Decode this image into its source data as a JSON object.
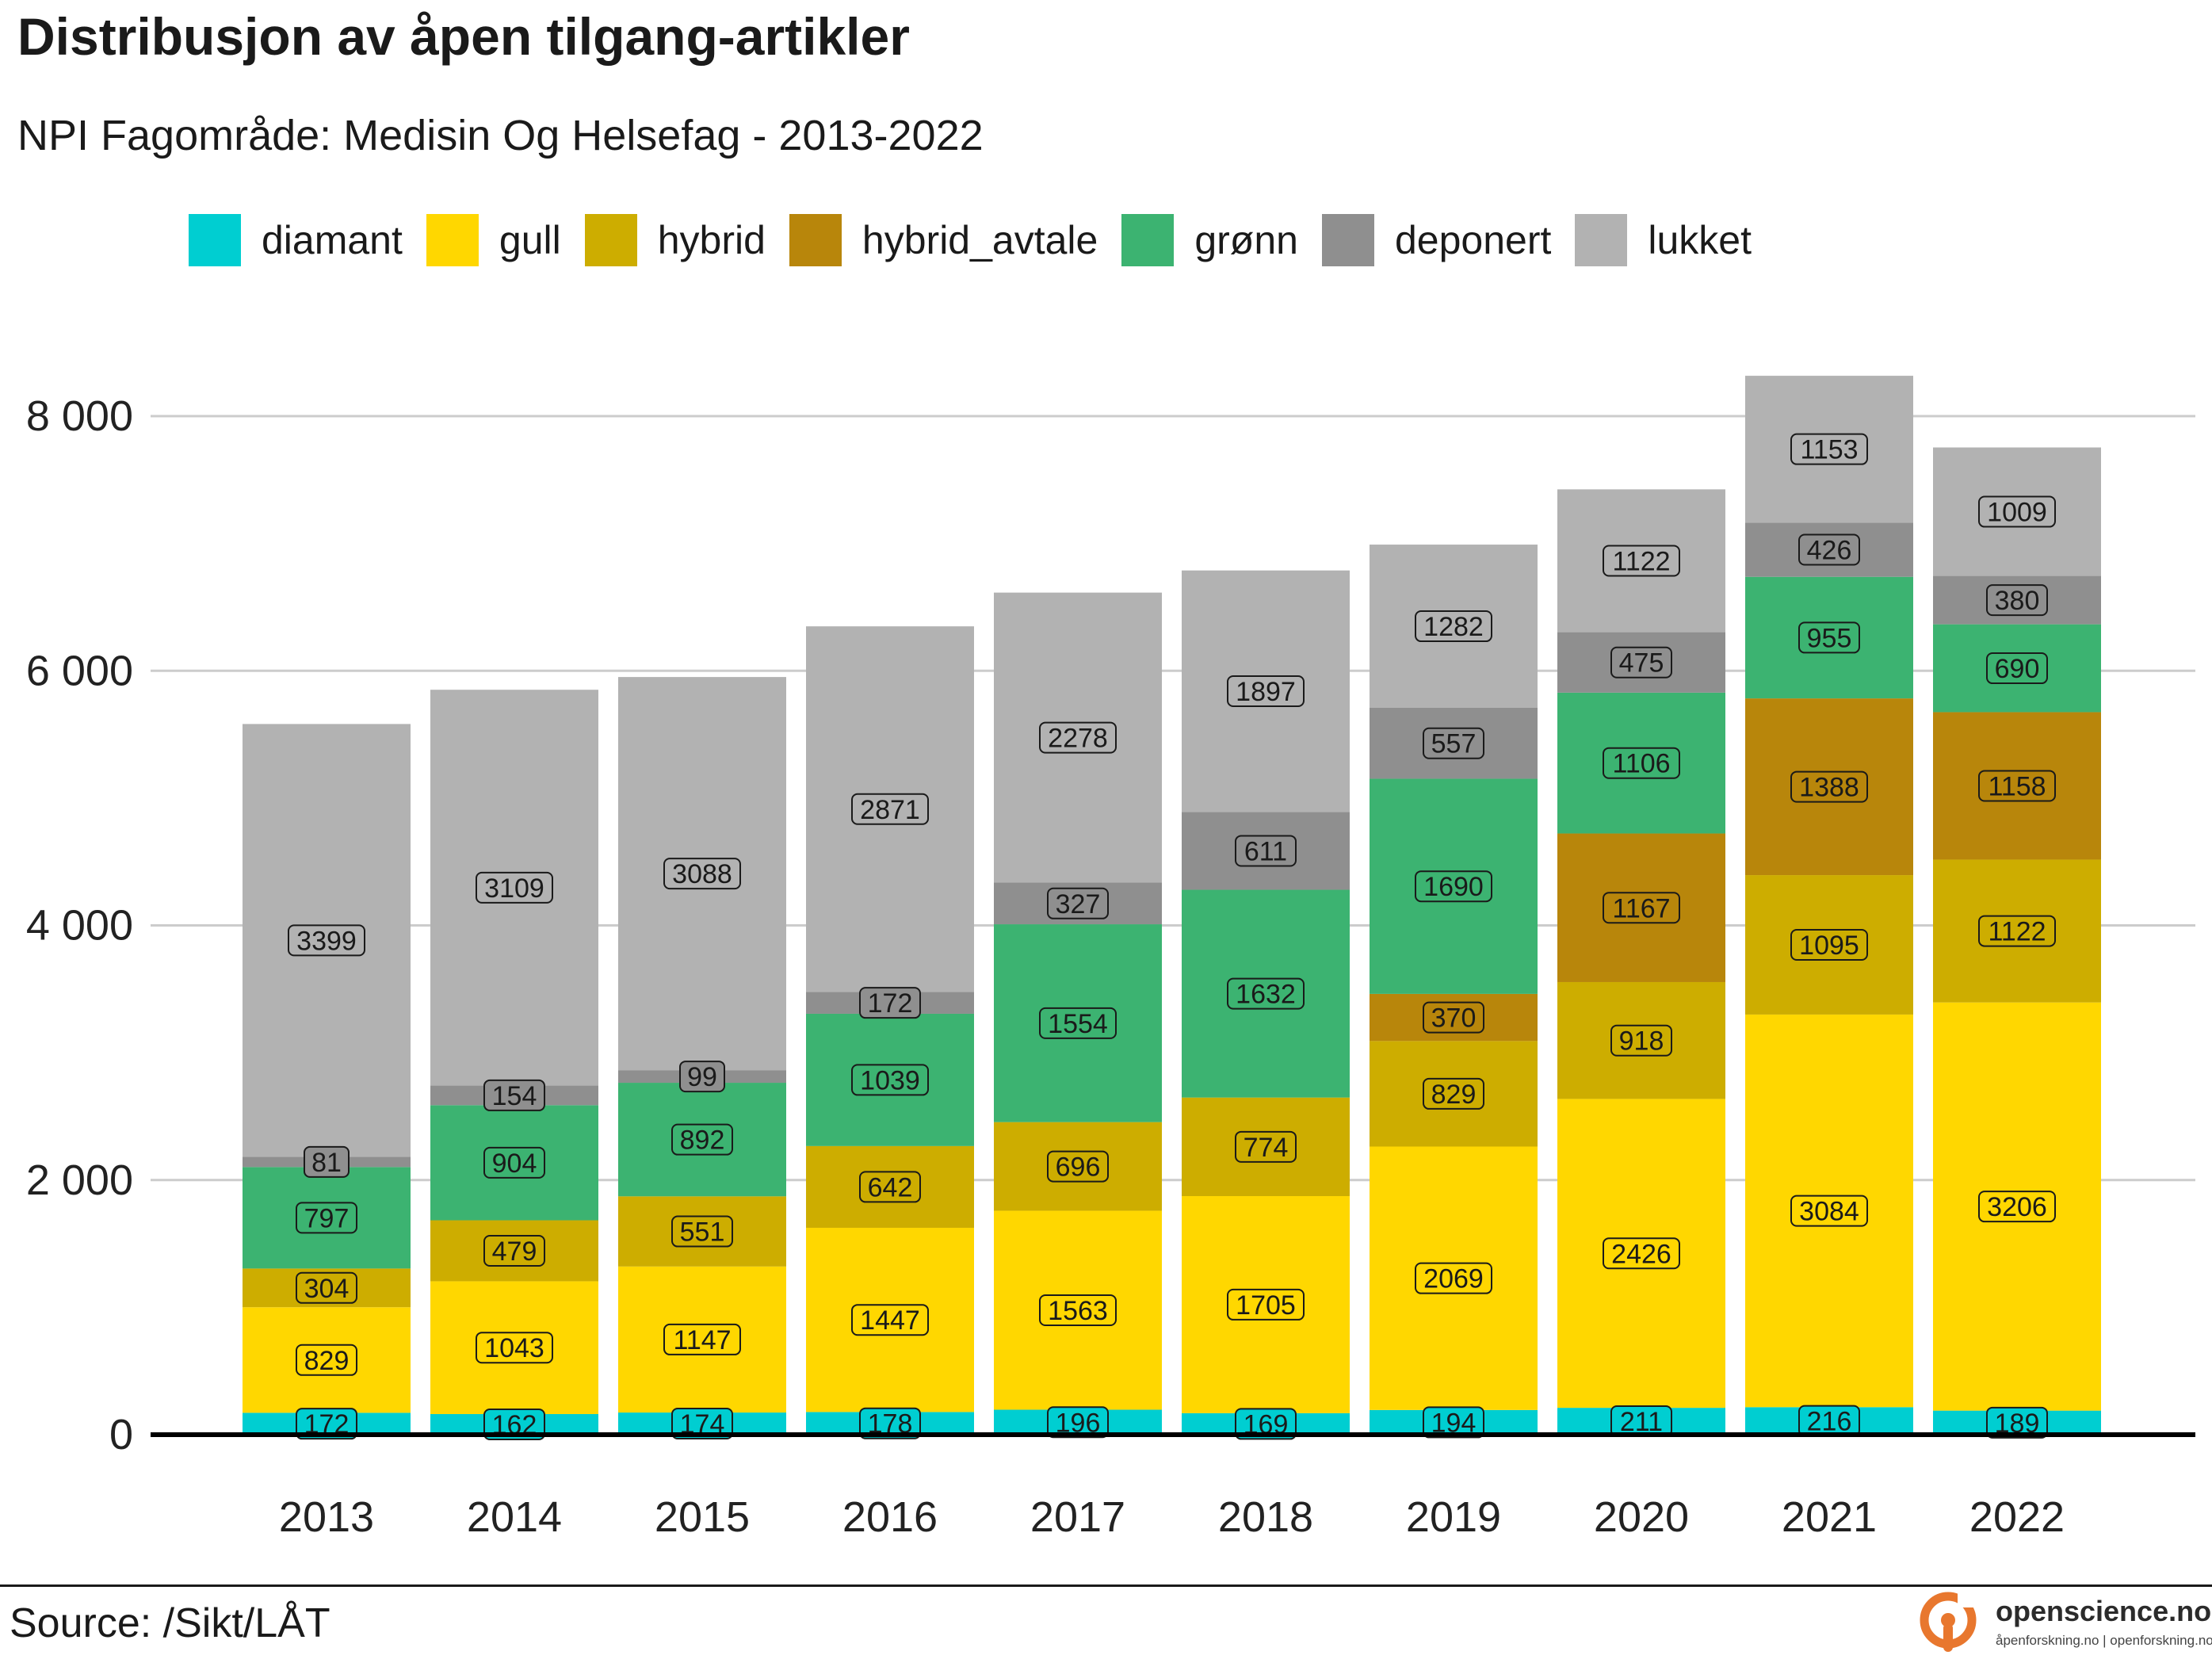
{
  "title": "Distribusjon av åpen tilgang-artikler",
  "subtitle": "NPI Fagområde: Medisin Og Helsefag - 2013-2022",
  "source": "Source: /Sikt/LÅT",
  "brand": {
    "name": "openscience.no",
    "tagline": "åpenforskning.no | openforskning.no",
    "logo_icon": "open-access-lock-icon",
    "color": "#E8772E"
  },
  "chart_data": {
    "type": "bar",
    "stacked": true,
    "categories": [
      "2013",
      "2014",
      "2015",
      "2016",
      "2017",
      "2018",
      "2019",
      "2020",
      "2021",
      "2022"
    ],
    "series": [
      {
        "name": "diamant",
        "color": "#00CED1",
        "values": [
          172,
          162,
          174,
          178,
          196,
          169,
          194,
          211,
          216,
          189
        ]
      },
      {
        "name": "gull",
        "color": "#FFD700",
        "values": [
          829,
          1043,
          1147,
          1447,
          1563,
          1705,
          2069,
          2426,
          3084,
          3206
        ]
      },
      {
        "name": "hybrid",
        "color": "#CDAD00",
        "values": [
          304,
          479,
          551,
          642,
          696,
          774,
          829,
          918,
          1095,
          1122
        ]
      },
      {
        "name": "hybrid_avtale",
        "color": "#B8860B",
        "values": [
          0,
          0,
          0,
          0,
          0,
          0,
          370,
          1167,
          1388,
          1158
        ]
      },
      {
        "name": "grønn",
        "color": "#3CB371",
        "values": [
          797,
          904,
          892,
          1039,
          1554,
          1632,
          1690,
          1106,
          955,
          690
        ]
      },
      {
        "name": "deponert",
        "color": "#8F8F8F",
        "values": [
          81,
          154,
          99,
          172,
          327,
          611,
          557,
          475,
          426,
          380
        ]
      },
      {
        "name": "lukket",
        "color": "#B2B2B2",
        "values": [
          3399,
          3109,
          3088,
          2871,
          2278,
          1897,
          1282,
          1122,
          1153,
          1009
        ]
      }
    ],
    "y_ticks": [
      0,
      2000,
      4000,
      6000,
      8000
    ],
    "y_tick_labels": [
      "0",
      "2 000",
      "4 000",
      "6 000",
      "8 000"
    ],
    "ylim": [
      0,
      8600
    ],
    "grid": "horizontal",
    "legend_position": "top",
    "xlabel": "",
    "ylabel": ""
  }
}
